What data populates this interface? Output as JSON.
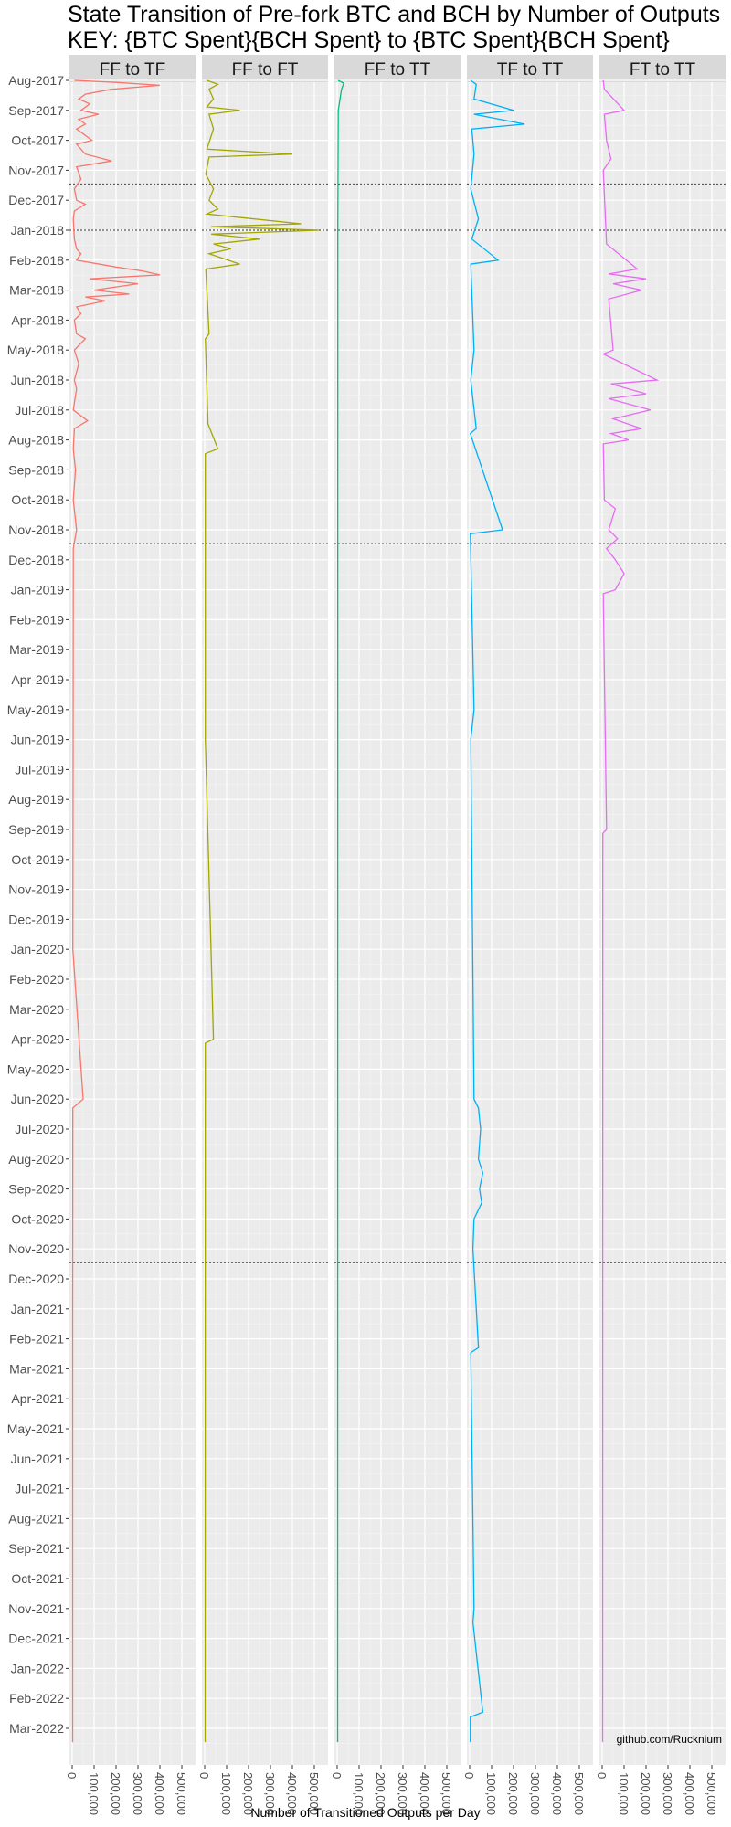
{
  "title": "State Transition of Pre-fork BTC and BCH by Number of Outputs",
  "subtitle": "KEY: {BTC Spent}{BCH Spent} to {BTC Spent}{BCH Spent}",
  "watermark": "github.com/Rucknium",
  "chart_data": {
    "type": "line",
    "title": "State Transition of Pre-fork BTC and BCH by Number of Outputs",
    "subtitle": "KEY: {BTC Spent}{BCH Spent} to {BTC Spent}{BCH Spent}",
    "xlabel": "Number of Transitioned Outputs per Day",
    "ylabel": "",
    "orientation": "time on vertical axis, values on horizontal axis",
    "xlim": [
      0,
      500000
    ],
    "x_ticks": [
      "0",
      "100,000",
      "200,000",
      "300,000",
      "400,000",
      "500,000"
    ],
    "y_ticks": [
      "Aug-2017",
      "Sep-2017",
      "Oct-2017",
      "Nov-2017",
      "Dec-2017",
      "Jan-2018",
      "Feb-2018",
      "Mar-2018",
      "Apr-2018",
      "May-2018",
      "Jun-2018",
      "Jul-2018",
      "Aug-2018",
      "Sep-2018",
      "Oct-2018",
      "Nov-2018",
      "Dec-2018",
      "Jan-2019",
      "Feb-2019",
      "Mar-2019",
      "Apr-2019",
      "May-2019",
      "Jun-2019",
      "Jul-2019",
      "Aug-2019",
      "Sep-2019",
      "Oct-2019",
      "Nov-2019",
      "Dec-2019",
      "Jan-2020",
      "Feb-2020",
      "Mar-2020",
      "Apr-2020",
      "May-2020",
      "Jun-2020",
      "Jul-2020",
      "Aug-2020",
      "Sep-2020",
      "Oct-2020",
      "Nov-2020",
      "Dec-2020",
      "Jan-2021",
      "Feb-2021",
      "Mar-2021",
      "Apr-2021",
      "May-2021",
      "Jun-2021",
      "Jul-2021",
      "Aug-2021",
      "Sep-2021",
      "Oct-2021",
      "Nov-2021",
      "Dec-2021",
      "Jan-2022",
      "Feb-2022",
      "Mar-2022"
    ],
    "reference_lines": [
      "2017-11-15",
      "2018-01-01",
      "2018-11-15",
      "2020-11-15"
    ],
    "grid": true,
    "legend": "none",
    "panels": [
      {
        "name": "FF to TF",
        "color": "#F8766D",
        "points": [
          [
            "2017-08-01",
            10000
          ],
          [
            "2017-08-03",
            200000
          ],
          [
            "2017-08-06",
            400000
          ],
          [
            "2017-08-10",
            180000
          ],
          [
            "2017-08-15",
            60000
          ],
          [
            "2017-08-20",
            30000
          ],
          [
            "2017-08-25",
            80000
          ],
          [
            "2017-09-01",
            40000
          ],
          [
            "2017-09-05",
            120000
          ],
          [
            "2017-09-10",
            30000
          ],
          [
            "2017-09-15",
            60000
          ],
          [
            "2017-09-20",
            20000
          ],
          [
            "2017-10-01",
            90000
          ],
          [
            "2017-10-05",
            20000
          ],
          [
            "2017-10-15",
            60000
          ],
          [
            "2017-10-22",
            180000
          ],
          [
            "2017-10-28",
            20000
          ],
          [
            "2017-11-10",
            40000
          ],
          [
            "2017-11-20",
            10000
          ],
          [
            "2017-12-01",
            20000
          ],
          [
            "2017-12-05",
            60000
          ],
          [
            "2017-12-12",
            10000
          ],
          [
            "2017-12-20",
            5000
          ],
          [
            "2018-01-10",
            10000
          ],
          [
            "2018-01-20",
            20000
          ],
          [
            "2018-01-25",
            40000
          ],
          [
            "2018-02-01",
            20000
          ],
          [
            "2018-02-08",
            200000
          ],
          [
            "2018-02-12",
            320000
          ],
          [
            "2018-02-16",
            400000
          ],
          [
            "2018-02-20",
            80000
          ],
          [
            "2018-02-25",
            300000
          ],
          [
            "2018-03-01",
            100000
          ],
          [
            "2018-03-05",
            260000
          ],
          [
            "2018-03-08",
            60000
          ],
          [
            "2018-03-12",
            150000
          ],
          [
            "2018-03-18",
            20000
          ],
          [
            "2018-03-25",
            40000
          ],
          [
            "2018-04-01",
            10000
          ],
          [
            "2018-04-15",
            20000
          ],
          [
            "2018-04-20",
            60000
          ],
          [
            "2018-05-01",
            10000
          ],
          [
            "2018-05-15",
            30000
          ],
          [
            "2018-06-01",
            10000
          ],
          [
            "2018-06-10",
            20000
          ],
          [
            "2018-07-01",
            5000
          ],
          [
            "2018-07-12",
            70000
          ],
          [
            "2018-07-20",
            10000
          ],
          [
            "2018-08-10",
            5000
          ],
          [
            "2018-09-01",
            15000
          ],
          [
            "2018-10-01",
            5000
          ],
          [
            "2018-11-01",
            20000
          ],
          [
            "2018-11-20",
            5000
          ],
          [
            "2019-06-01",
            4000
          ],
          [
            "2020-01-01",
            3000
          ],
          [
            "2020-06-01",
            50000
          ],
          [
            "2020-06-10",
            3000
          ],
          [
            "2021-01-01",
            2000
          ],
          [
            "2022-03-15",
            2000
          ]
        ]
      },
      {
        "name": "FF to FT",
        "color": "#A3A500",
        "points": [
          [
            "2017-08-01",
            10000
          ],
          [
            "2017-08-05",
            60000
          ],
          [
            "2017-08-10",
            20000
          ],
          [
            "2017-08-20",
            40000
          ],
          [
            "2017-08-28",
            10000
          ],
          [
            "2017-09-01",
            160000
          ],
          [
            "2017-09-05",
            20000
          ],
          [
            "2017-09-20",
            40000
          ],
          [
            "2017-10-10",
            10000
          ],
          [
            "2017-10-15",
            400000
          ],
          [
            "2017-10-18",
            20000
          ],
          [
            "2017-11-05",
            5000
          ],
          [
            "2017-11-20",
            40000
          ],
          [
            "2017-12-01",
            20000
          ],
          [
            "2017-12-10",
            60000
          ],
          [
            "2017-12-15",
            10000
          ],
          [
            "2017-12-25",
            440000
          ],
          [
            "2017-12-28",
            30000
          ],
          [
            "2018-01-01",
            520000
          ],
          [
            "2018-01-05",
            30000
          ],
          [
            "2018-01-10",
            250000
          ],
          [
            "2018-01-15",
            40000
          ],
          [
            "2018-01-20",
            120000
          ],
          [
            "2018-01-25",
            20000
          ],
          [
            "2018-02-05",
            160000
          ],
          [
            "2018-02-10",
            5000
          ],
          [
            "2018-04-15",
            20000
          ],
          [
            "2018-04-20",
            3000
          ],
          [
            "2018-07-15",
            15000
          ],
          [
            "2018-08-10",
            60000
          ],
          [
            "2018-08-15",
            3000
          ],
          [
            "2019-06-01",
            3000
          ],
          [
            "2020-04-01",
            40000
          ],
          [
            "2020-04-05",
            3000
          ],
          [
            "2022-03-15",
            2000
          ]
        ]
      },
      {
        "name": "FF to TT",
        "color": "#00BF7D",
        "points": [
          [
            "2017-08-01",
            5000
          ],
          [
            "2017-08-04",
            30000
          ],
          [
            "2017-08-10",
            20000
          ],
          [
            "2017-09-01",
            5000
          ],
          [
            "2018-01-01",
            3000
          ],
          [
            "2022-03-15",
            2000
          ]
        ]
      },
      {
        "name": "TF to TT",
        "color": "#00B0F6",
        "points": [
          [
            "2017-08-01",
            5000
          ],
          [
            "2017-08-05",
            30000
          ],
          [
            "2017-08-20",
            20000
          ],
          [
            "2017-09-01",
            200000
          ],
          [
            "2017-09-05",
            20000
          ],
          [
            "2017-09-15",
            250000
          ],
          [
            "2017-09-20",
            10000
          ],
          [
            "2017-10-15",
            20000
          ],
          [
            "2017-11-20",
            5000
          ],
          [
            "2017-12-20",
            40000
          ],
          [
            "2018-01-10",
            10000
          ],
          [
            "2018-02-01",
            130000
          ],
          [
            "2018-02-05",
            5000
          ],
          [
            "2018-05-01",
            20000
          ],
          [
            "2018-06-01",
            5000
          ],
          [
            "2018-07-20",
            30000
          ],
          [
            "2018-07-25",
            3000
          ],
          [
            "2018-11-01",
            150000
          ],
          [
            "2018-11-05",
            3000
          ],
          [
            "2019-05-01",
            20000
          ],
          [
            "2019-06-01",
            5000
          ],
          [
            "2020-06-01",
            20000
          ],
          [
            "2020-06-10",
            40000
          ],
          [
            "2020-07-01",
            50000
          ],
          [
            "2020-08-01",
            40000
          ],
          [
            "2020-08-15",
            60000
          ],
          [
            "2020-09-01",
            45000
          ],
          [
            "2020-09-15",
            55000
          ],
          [
            "2020-10-01",
            20000
          ],
          [
            "2020-11-01",
            15000
          ],
          [
            "2021-02-10",
            40000
          ],
          [
            "2021-02-15",
            5000
          ],
          [
            "2021-11-01",
            20000
          ],
          [
            "2021-11-15",
            15000
          ],
          [
            "2022-02-15",
            60000
          ],
          [
            "2022-02-20",
            3000
          ],
          [
            "2022-03-15",
            3000
          ]
        ]
      },
      {
        "name": "FT to TT",
        "color": "#E76BF3",
        "points": [
          [
            "2017-08-01",
            5000
          ],
          [
            "2017-08-10",
            10000
          ],
          [
            "2017-09-01",
            100000
          ],
          [
            "2017-09-05",
            10000
          ],
          [
            "2017-10-01",
            20000
          ],
          [
            "2017-10-20",
            40000
          ],
          [
            "2017-11-01",
            5000
          ],
          [
            "2018-01-15",
            20000
          ],
          [
            "2018-02-10",
            160000
          ],
          [
            "2018-02-15",
            30000
          ],
          [
            "2018-02-20",
            200000
          ],
          [
            "2018-02-25",
            50000
          ],
          [
            "2018-03-01",
            180000
          ],
          [
            "2018-03-10",
            30000
          ],
          [
            "2018-05-01",
            50000
          ],
          [
            "2018-05-05",
            5000
          ],
          [
            "2018-06-01",
            250000
          ],
          [
            "2018-06-05",
            40000
          ],
          [
            "2018-06-15",
            200000
          ],
          [
            "2018-06-20",
            30000
          ],
          [
            "2018-07-01",
            220000
          ],
          [
            "2018-07-10",
            50000
          ],
          [
            "2018-07-20",
            180000
          ],
          [
            "2018-07-25",
            40000
          ],
          [
            "2018-08-01",
            120000
          ],
          [
            "2018-08-05",
            5000
          ],
          [
            "2018-10-01",
            10000
          ],
          [
            "2018-10-10",
            60000
          ],
          [
            "2018-11-01",
            30000
          ],
          [
            "2018-11-10",
            70000
          ],
          [
            "2018-11-20",
            20000
          ],
          [
            "2018-12-01",
            60000
          ],
          [
            "2018-12-15",
            100000
          ],
          [
            "2019-01-01",
            60000
          ],
          [
            "2019-01-05",
            5000
          ],
          [
            "2019-09-01",
            20000
          ],
          [
            "2019-09-05",
            3000
          ],
          [
            "2022-03-15",
            2000
          ]
        ]
      }
    ]
  }
}
